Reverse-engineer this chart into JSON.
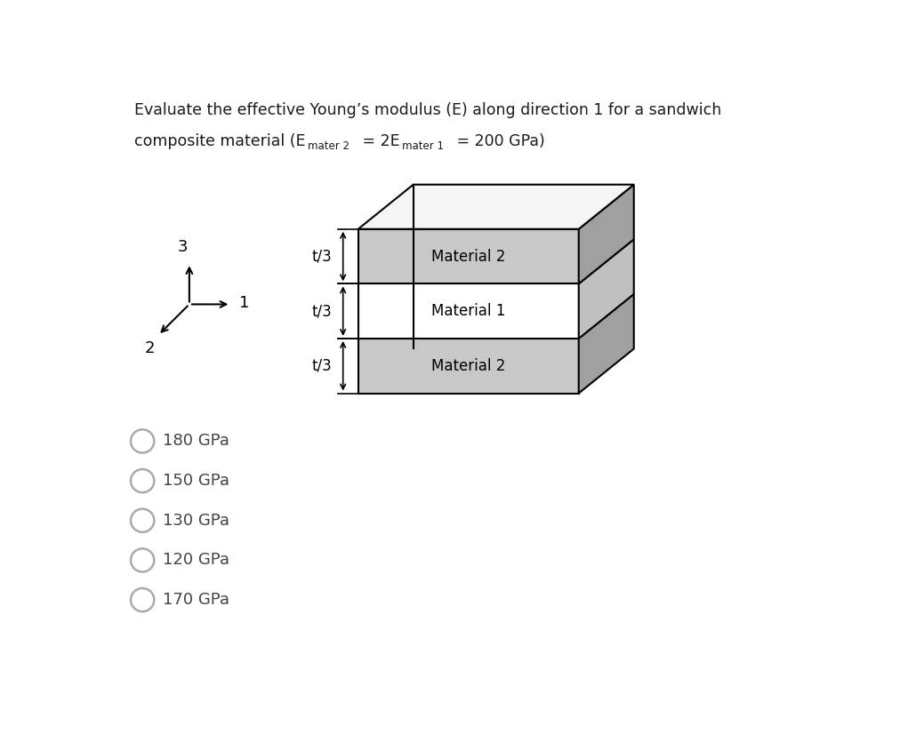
{
  "title_line1": "Evaluate the effective Young’s modulus (E) along direction 1 for a sandwich",
  "title_line2_prefix": "composite material (E",
  "title_sub1": "mater 2",
  "title_mid": " = 2E",
  "title_sub2": "mater 1",
  "title_end": " = 200 GPa)",
  "options": [
    "180 GPa",
    "150 GPa",
    "130 GPa",
    "120 GPa",
    "170 GPa"
  ],
  "material_labels": [
    "Material 2",
    "Material 1",
    "Material 2"
  ],
  "thickness_labels": [
    "t/3",
    "t/3",
    "t/3"
  ],
  "layer_colors_front": [
    "#c8c8c8",
    "#ffffff",
    "#c8c8c8"
  ],
  "layer_colors_side": [
    "#a0a0a0",
    "#c0c0c0",
    "#a0a0a0"
  ],
  "top_face_color": "#f5f5f5",
  "bg_color": "#ffffff",
  "text_color": "#444444",
  "outline_color": "#000000"
}
